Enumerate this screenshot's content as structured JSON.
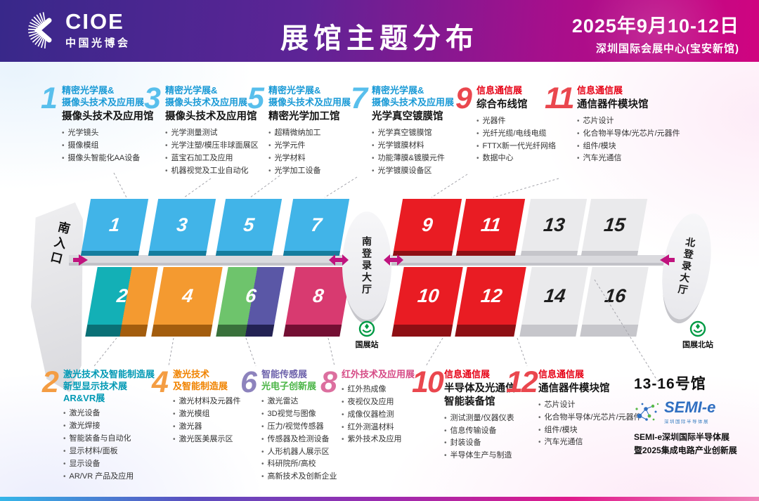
{
  "header": {
    "logo_text": "CIOE",
    "logo_sub": "中国光博会",
    "title": "展馆主题分布",
    "date": "2025年9月10-12日",
    "venue": "深圳国际会展中心(宝安新馆)"
  },
  "palette": {
    "header_left": "#38288a",
    "header_right": "#d00480",
    "blue_top": "#41b4e8",
    "blue_front": "#157d9e",
    "red_top": "#e91c23",
    "red_front": "#8e0f14",
    "gray_top": "#eaeaec",
    "gray_front": "#c6c6cb",
    "teal_top": "#13b0b6",
    "teal_front": "#0a7076",
    "orange_top": "#f49a30",
    "orange_front": "#a35d0e",
    "green_top": "#6ec46c",
    "green_front": "#39713b",
    "purple_top": "#5a57a6",
    "purple_front": "#232253",
    "pink_top": "#d83a70",
    "pink_front": "#740f33",
    "arrow": "#c0137e",
    "metro_green": "#009a44",
    "leader_line": "#a4a4ab"
  },
  "panels_top": [
    {
      "num": "1",
      "num_color": "blue",
      "title": [
        {
          "text": "精密光学展&",
          "color": "blue"
        },
        {
          "text": "摄像头技术及应用展",
          "color": "blue"
        }
      ],
      "subtitle": [
        "摄像头技术及应用馆"
      ],
      "bullets": [
        "光学镜头",
        "摄像模组",
        "摄像头智能化AA设备"
      ]
    },
    {
      "num": "3",
      "num_color": "blue",
      "title": [
        {
          "text": "精密光学展&",
          "color": "blue"
        },
        {
          "text": "摄像头技术及应用展",
          "color": "blue"
        }
      ],
      "subtitle": [
        "摄像头技术及应用馆"
      ],
      "bullets": [
        "光学测量测试",
        "光学注塑/模压非球面展区",
        "蓝宝石加工及应用",
        "机器视觉及工业自动化"
      ]
    },
    {
      "num": "5",
      "num_color": "blue",
      "title": [
        {
          "text": "精密光学展&",
          "color": "blue"
        },
        {
          "text": "摄像头技术及应用展",
          "color": "blue"
        }
      ],
      "subtitle": [
        "精密光学加工馆"
      ],
      "bullets": [
        "超精微纳加工",
        "光学元件",
        "光学材料",
        "光学加工设备"
      ]
    },
    {
      "num": "7",
      "num_color": "blue",
      "title": [
        {
          "text": "精密光学展&",
          "color": "blue"
        },
        {
          "text": "摄像头技术及应用展",
          "color": "blue"
        }
      ],
      "subtitle": [
        "光学真空镀膜馆"
      ],
      "bullets": [
        "光学真空镀膜馆",
        "光学镀膜材料",
        "功能薄膜&镀膜元件",
        "光学镀膜设备区"
      ]
    },
    {
      "num": "9",
      "num_color": "red",
      "title": [
        {
          "text": "信息通信展",
          "color": "red"
        }
      ],
      "subtitle": [
        "综合布线馆"
      ],
      "bullets": [
        "光器件",
        "光纤光缆/电线电缆",
        "FTTX新一代光纤网络",
        "数据中心"
      ]
    },
    {
      "num": "11",
      "num_color": "red",
      "title": [
        {
          "text": "信息通信展",
          "color": "red"
        }
      ],
      "subtitle": [
        "通信器件模块馆"
      ],
      "bullets": [
        "芯片设计",
        "化合物半导体/光芯片/元器件",
        "组件/模块",
        "汽车光通信"
      ]
    }
  ],
  "panels_bottom": [
    {
      "num": "2",
      "num_color": "orange",
      "title": [
        {
          "text": "激光技术及智能制造展",
          "color": "teal"
        },
        {
          "text": "新型显示技术展",
          "color": "teal"
        },
        {
          "text": "AR&VR展",
          "color": "teal"
        }
      ],
      "subtitle": [],
      "bullets": [
        "激光设备",
        "激光焊接",
        "智能装备与自动化",
        "显示材料/面板",
        "显示设备",
        "AR/VR 产品及应用"
      ]
    },
    {
      "num": "4",
      "num_color": "orange",
      "title": [
        {
          "text": "激光技术",
          "color": "orange"
        },
        {
          "text": "及智能制造展",
          "color": "orange"
        }
      ],
      "subtitle": [],
      "bullets": [
        "激光材料及元器件",
        "激光模组",
        "激光器",
        "激光医美展示区"
      ]
    },
    {
      "num": "6",
      "num_color": "purple",
      "title": [
        {
          "text": "智能传感展",
          "color": "purple"
        },
        {
          "text": "光电子创新展",
          "color": "green"
        }
      ],
      "subtitle": [],
      "bullets": [
        "激光雷达",
        "3D视觉与图像",
        "压力/视觉传感器",
        "传感器及检测设备",
        "人形机器人展示区",
        "科研院所/高校",
        "高新技术及创新企业"
      ]
    },
    {
      "num": "8",
      "num_color": "pink",
      "title": [
        {
          "text": "红外技术及应用展",
          "color": "pink"
        }
      ],
      "subtitle": [],
      "bullets": [
        "红外热成像",
        "夜视仪及应用",
        "成像仪器检测",
        "红外测温材料",
        "紫外技术及应用"
      ]
    },
    {
      "num": "10",
      "num_color": "red",
      "title": [
        {
          "text": "信息通信展",
          "color": "red"
        }
      ],
      "subtitle": [
        "半导体及光通信",
        "智能装备馆"
      ],
      "bullets": [
        "测试测量/仪器仪表",
        "信息传输设备",
        "封装设备",
        "半导体生产与制造"
      ]
    },
    {
      "num": "12",
      "num_color": "red",
      "title": [
        {
          "text": "信息通信展",
          "color": "red"
        }
      ],
      "subtitle": [
        "通信器件模块馆"
      ],
      "bullets": [
        "芯片设计",
        "化合物半导体/光芯片/元器件",
        "组件/模块",
        "汽车光通信"
      ]
    }
  ],
  "semi": {
    "heading": "13-16号馆",
    "logo_text": "SEMI-e",
    "logo_caption": "深圳国际半导体展",
    "lines": [
      "SEMI-e深圳国际半导体展",
      "暨2025集成电路产业创新展"
    ]
  },
  "map": {
    "south_entrance": "南入口",
    "south_lobby": "南登录大厅",
    "north_lobby": "北登录大厅",
    "station_south": "国展站",
    "station_north": "国展北站",
    "halls": [
      {
        "num": "1",
        "color": "blue"
      },
      {
        "num": "3",
        "color": "blue"
      },
      {
        "num": "5",
        "color": "blue"
      },
      {
        "num": "7",
        "color": "blue"
      },
      {
        "num": "9",
        "color": "red"
      },
      {
        "num": "11",
        "color": "red"
      },
      {
        "num": "13",
        "color": "gray"
      },
      {
        "num": "15",
        "color": "gray"
      },
      {
        "num": "2",
        "color": "split2"
      },
      {
        "num": "4",
        "color": "orange"
      },
      {
        "num": "6",
        "color": "split6"
      },
      {
        "num": "8",
        "color": "pink"
      },
      {
        "num": "10",
        "color": "red"
      },
      {
        "num": "12",
        "color": "red"
      },
      {
        "num": "14",
        "color": "gray"
      },
      {
        "num": "16",
        "color": "gray"
      }
    ]
  }
}
